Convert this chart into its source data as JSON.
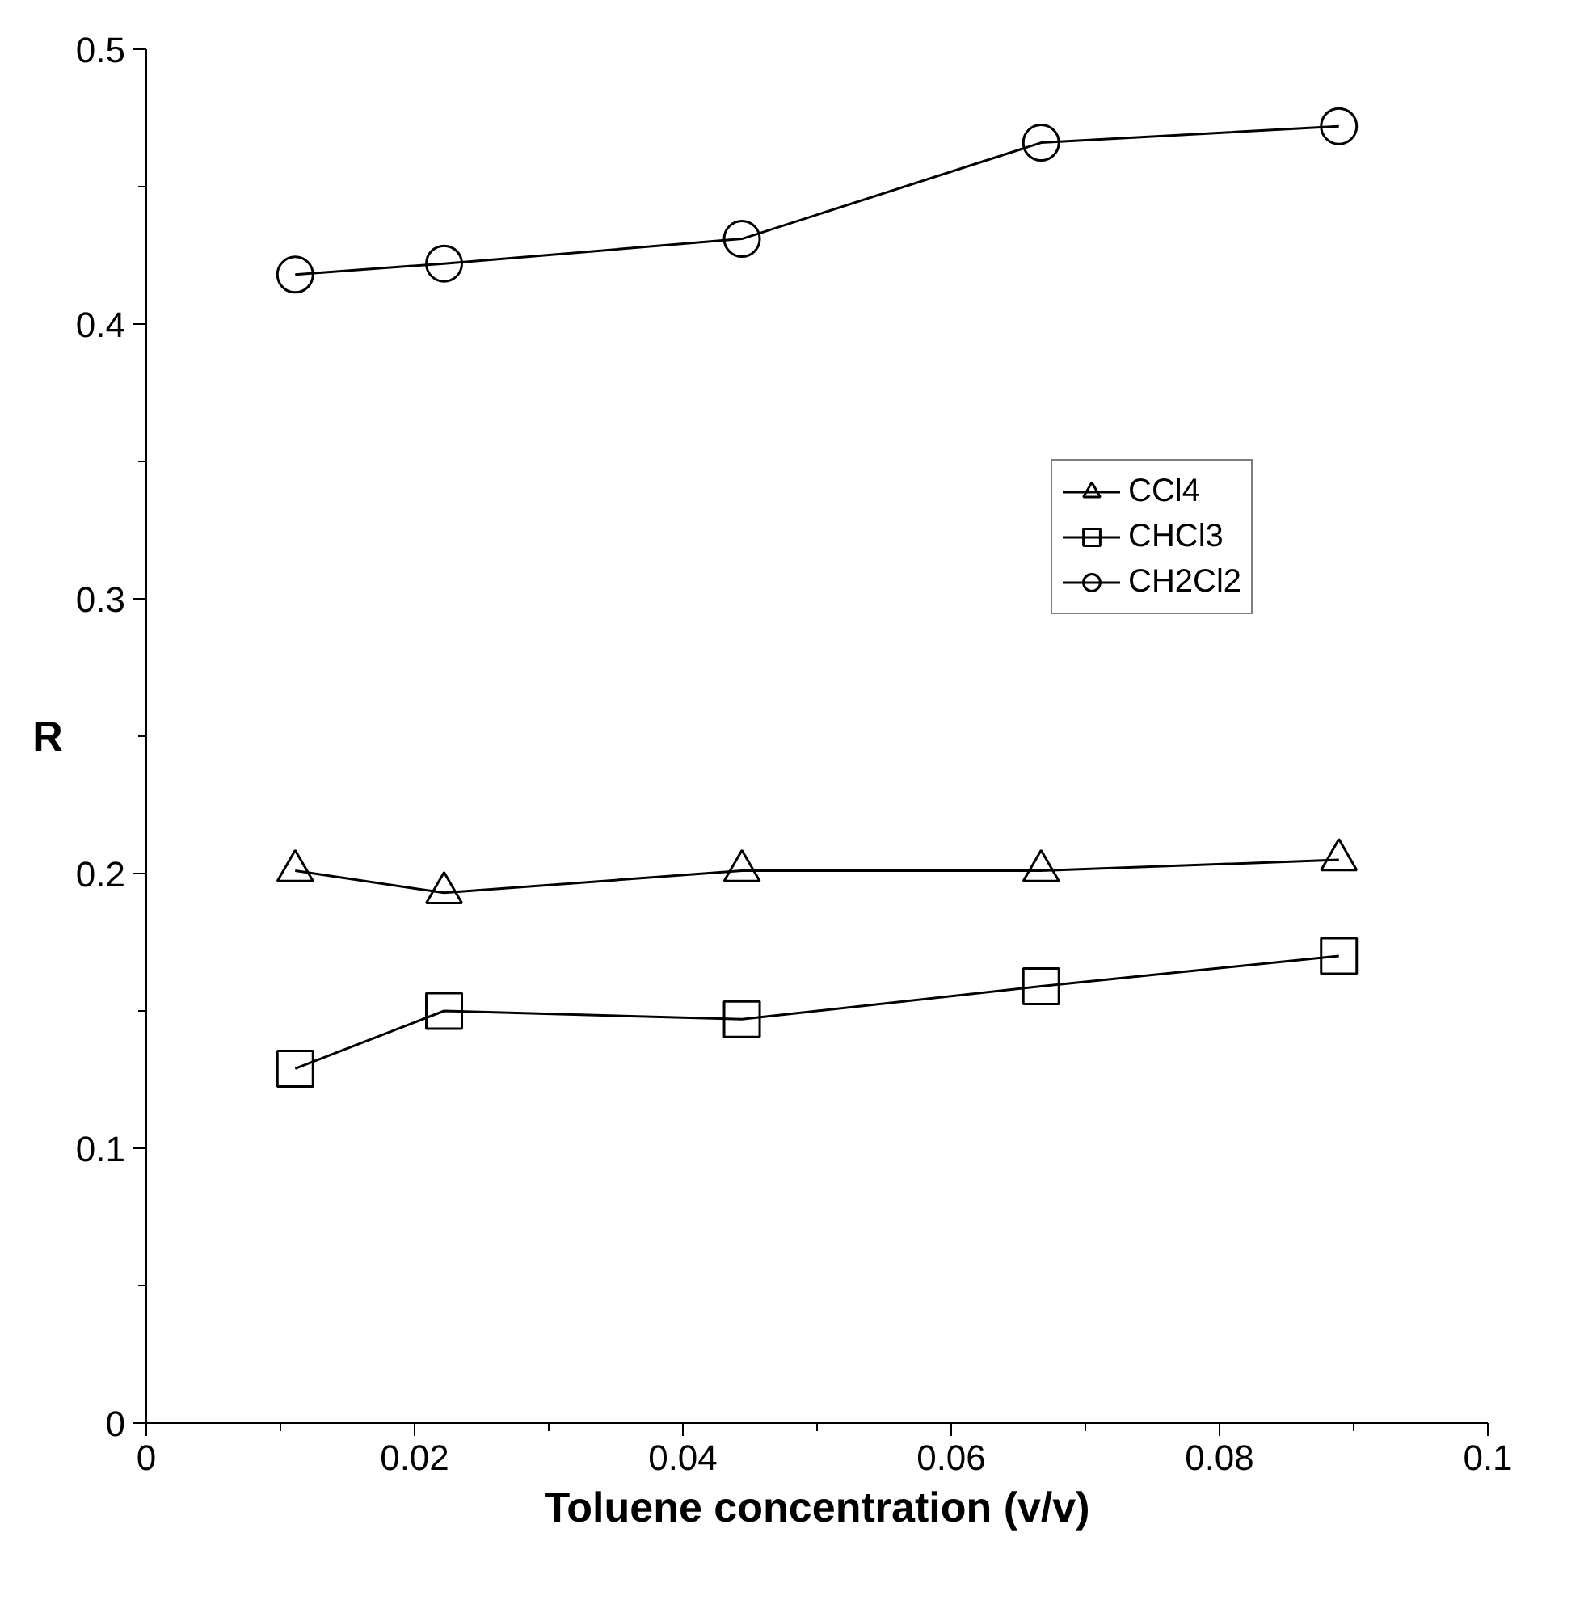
{
  "chart_data": {
    "type": "line",
    "xlabel": "Toluene concentration (v/v)",
    "ylabel": "R",
    "x": [
      0.0111,
      0.0222,
      0.0444,
      0.0667,
      0.0889
    ],
    "series": [
      {
        "name": "CCl4",
        "color": "#000000",
        "marker": "triangle",
        "values": [
          0.201,
          0.193,
          0.201,
          0.201,
          0.205
        ]
      },
      {
        "name": "CHCl3",
        "color": "#000000",
        "marker": "square",
        "values": [
          0.129,
          0.15,
          0.147,
          0.159,
          0.17
        ]
      },
      {
        "name": "CH2Cl2",
        "color": "#000000",
        "marker": "circle",
        "values": [
          0.418,
          0.422,
          0.431,
          0.466,
          0.472
        ]
      }
    ],
    "xlim": [
      0,
      0.1
    ],
    "xticks": [
      0,
      0.02,
      0.04,
      0.06,
      0.08,
      0.1
    ],
    "ylim": [
      0,
      0.5
    ],
    "yticks": [
      0,
      0.1,
      0.2,
      0.3,
      0.4,
      0.5
    ],
    "grid": false,
    "legend": "right",
    "line_style": "solid"
  }
}
